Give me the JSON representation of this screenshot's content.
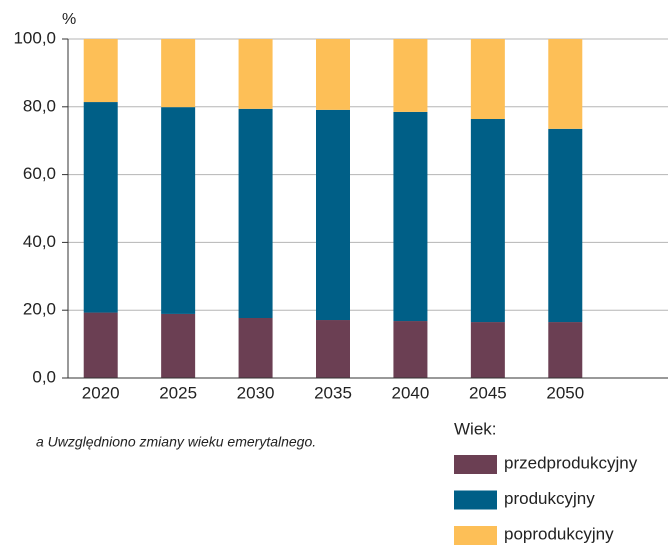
{
  "chart_data": {
    "type": "stacked_bar",
    "y_label": "%",
    "categories": [
      "2020",
      "2025",
      "2030",
      "2035",
      "2040",
      "2045",
      "2050"
    ],
    "series": [
      {
        "name": "przedprodukcyjny",
        "color": "#6b3f53",
        "values": [
          19.3,
          18.9,
          17.7,
          17.1,
          16.8,
          16.5,
          16.5
        ]
      },
      {
        "name": "produkcyjny",
        "color": "#005f87",
        "values": [
          62.1,
          61.0,
          61.7,
          62.0,
          61.7,
          59.9,
          57.0
        ]
      },
      {
        "name": "poprodukcyjny",
        "color": "#fdbf57",
        "values": [
          18.6,
          20.1,
          20.6,
          20.9,
          21.5,
          23.6,
          26.5
        ]
      }
    ],
    "ylim": [
      0,
      100
    ],
    "yticks": [
      {
        "value": 0,
        "label": "0,0"
      },
      {
        "value": 20,
        "label": "20,0"
      },
      {
        "value": 40,
        "label": "40,0"
      },
      {
        "value": 60,
        "label": "60,0"
      },
      {
        "value": 80,
        "label": "80,0"
      },
      {
        "value": 100,
        "label": "100,0"
      }
    ],
    "grid": true,
    "legend_title": "Wiek:",
    "footnote": "a Uwzględniono zmiany wieku emerytalnego."
  }
}
